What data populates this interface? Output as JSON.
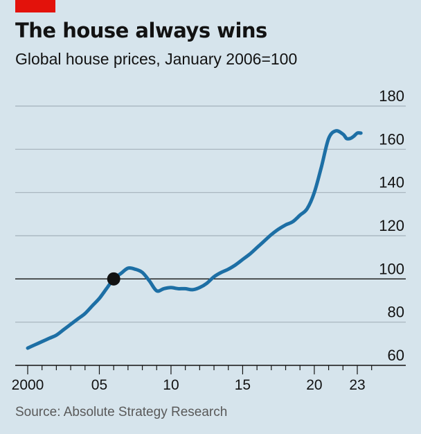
{
  "header": {
    "title": "The house always wins",
    "subtitle": "Global house prices, January 2006=100",
    "tag_color": "#e3120b"
  },
  "footer": {
    "source": "Source: Absolute Strategy Research"
  },
  "chart_data": {
    "type": "line",
    "title": "The house always wins",
    "subtitle": "Global house prices, January 2006=100",
    "xlabel": "",
    "ylabel": "",
    "xlim": [
      1999.7,
      2024.0
    ],
    "ylim": [
      60,
      180
    ],
    "y_ticks": [
      {
        "value": 60,
        "label": "60"
      },
      {
        "value": 80,
        "label": "80"
      },
      {
        "value": 100,
        "label": "100"
      },
      {
        "value": 120,
        "label": "120"
      },
      {
        "value": 140,
        "label": "140"
      },
      {
        "value": 160,
        "label": "160"
      },
      {
        "value": 180,
        "label": "180"
      }
    ],
    "x_ticks": [
      {
        "value": 2000,
        "label": "2000"
      },
      {
        "value": 2005,
        "label": "05"
      },
      {
        "value": 2010,
        "label": "10"
      },
      {
        "value": 2015,
        "label": "15"
      },
      {
        "value": 2020,
        "label": "20"
      },
      {
        "value": 2023,
        "label": "23"
      }
    ],
    "grid": "horizontal",
    "baseline": 100,
    "line_color": "#1d6fa5",
    "marker": {
      "x": 2006.0,
      "y": 100,
      "color": "#121212"
    },
    "series": [
      {
        "x": [
          2000.0,
          2000.5,
          2001.0,
          2001.5,
          2002.0,
          2002.5,
          2003.0,
          2003.5,
          2004.0,
          2004.5,
          2005.0,
          2005.5,
          2006.0,
          2006.5,
          2007.0,
          2007.5,
          2008.0,
          2008.5,
          2009.0,
          2009.5,
          2010.0,
          2010.5,
          2011.0,
          2011.5,
          2012.0,
          2012.5,
          2013.0,
          2013.5,
          2014.0,
          2014.5,
          2015.0,
          2015.5,
          2016.0,
          2016.5,
          2017.0,
          2017.5,
          2018.0,
          2018.5,
          2019.0,
          2019.5,
          2020.0,
          2020.5,
          2021.0,
          2021.5,
          2022.0,
          2022.25,
          2022.5,
          2022.75,
          2023.0,
          2023.25
        ],
        "y": [
          68,
          69.5,
          71,
          72.5,
          74,
          76.5,
          79,
          81.5,
          84,
          87.5,
          91,
          95.5,
          100,
          102.5,
          105,
          104.5,
          103,
          99,
          94.5,
          95.5,
          96,
          95.5,
          95.5,
          95,
          96,
          98,
          101,
          103,
          104.5,
          106.5,
          109,
          111.5,
          114.5,
          117.5,
          120.5,
          123,
          125,
          126.5,
          129.5,
          132.5,
          140,
          152,
          165,
          168.5,
          167,
          165,
          165,
          166,
          167.5,
          167.5
        ]
      }
    ]
  }
}
